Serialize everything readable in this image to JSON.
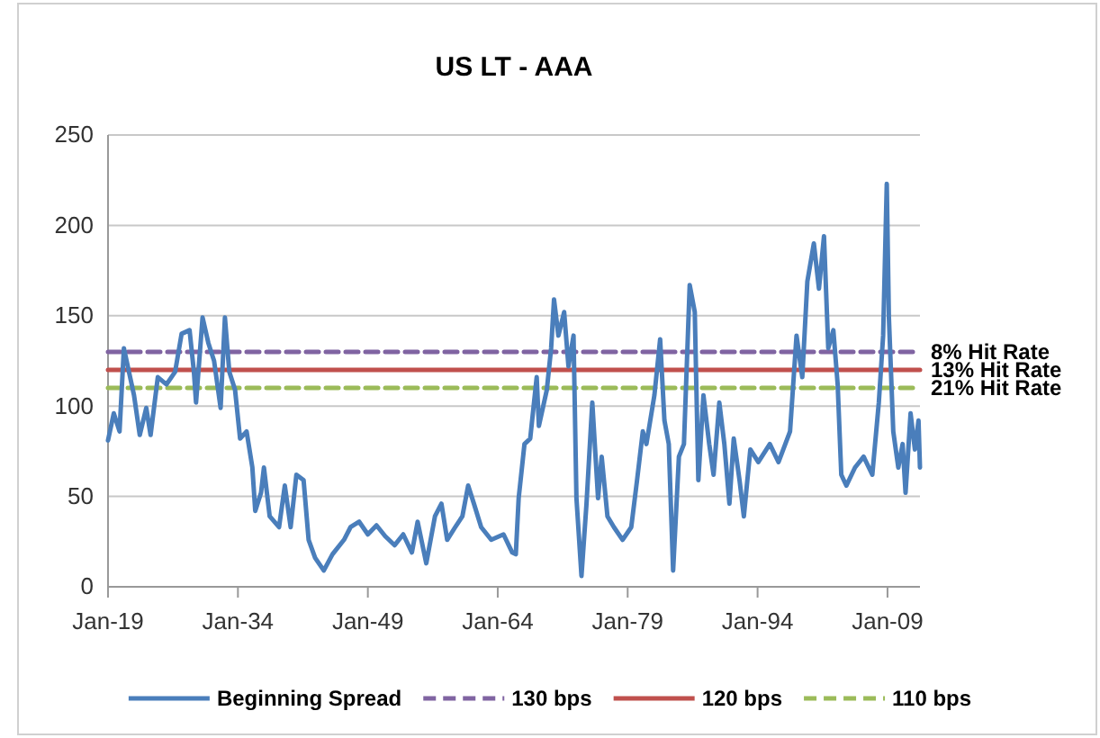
{
  "chart_data": {
    "type": "line",
    "title": "US LT - AAA",
    "xlim": [
      "1919-01",
      "2012-10"
    ],
    "xticks": [
      {
        "value": "1919-01",
        "label": "Jan-19"
      },
      {
        "value": "1934-01",
        "label": "Jan-34"
      },
      {
        "value": "1949-01",
        "label": "Jan-49"
      },
      {
        "value": "1964-01",
        "label": "Jan-64"
      },
      {
        "value": "1979-01",
        "label": "Jan-79"
      },
      {
        "value": "1994-01",
        "label": "Jan-94"
      },
      {
        "value": "2009-01",
        "label": "Jan-09"
      }
    ],
    "ylim": [
      0,
      250
    ],
    "yticks": [
      0,
      50,
      100,
      150,
      200,
      250
    ],
    "grid": "y",
    "legend": "bottom",
    "series": [
      {
        "name": "Beginning Spread",
        "color": "#4a7ebb",
        "line_style": "solid",
        "x": [
          "1919-01",
          "1919-09",
          "1920-05",
          "1920-11",
          "1921-06",
          "1922-01",
          "1922-09",
          "1923-06",
          "1923-12",
          "1924-10",
          "1925-10",
          "1926-10",
          "1927-07",
          "1928-06",
          "1928-12",
          "1929-03",
          "1929-12",
          "1930-08",
          "1931-04",
          "1932-01",
          "1932-07",
          "1933-01",
          "1933-09",
          "1934-04",
          "1935-01",
          "1935-09",
          "1936-01",
          "1936-09",
          "1937-01",
          "1937-09",
          "1938-10",
          "1939-06",
          "1940-02",
          "1940-10",
          "1941-08",
          "1942-03",
          "1942-12",
          "1943-12",
          "1944-12",
          "1946-04",
          "1947-01",
          "1948-01",
          "1949-01",
          "1950-01",
          "1951-01",
          "1952-02",
          "1953-02",
          "1954-02",
          "1954-10",
          "1955-10",
          "1956-10",
          "1957-07",
          "1958-03",
          "1959-02",
          "1959-12",
          "1960-08",
          "1961-04",
          "1962-02",
          "1963-04",
          "1964-09",
          "1965-09",
          "1966-02",
          "1966-06",
          "1967-02",
          "1967-10",
          "1968-07",
          "1968-10",
          "1969-09",
          "1970-03",
          "1970-07",
          "1971-01",
          "1971-09",
          "1972-03",
          "1972-10",
          "1973-02",
          "1973-09",
          "1974-04",
          "1974-12",
          "1975-08",
          "1976-01",
          "1976-09",
          "1977-06",
          "1978-06",
          "1979-06",
          "1980-02",
          "1980-10",
          "1981-03",
          "1982-02",
          "1982-10",
          "1983-04",
          "1983-10",
          "1984-04",
          "1984-12",
          "1985-07",
          "1986-03",
          "1986-10",
          "1987-03",
          "1987-10",
          "1988-06",
          "1988-12",
          "1989-08",
          "1990-03",
          "1990-10",
          "1991-04",
          "1991-12",
          "1992-06",
          "1993-03",
          "1994-02",
          "1995-06",
          "1996-06",
          "1997-10",
          "1998-07",
          "1999-03",
          "1999-10",
          "2000-07",
          "2001-02",
          "2001-09",
          "2002-03",
          "2002-10",
          "2003-04",
          "2003-09",
          "2004-04",
          "2005-04",
          "2006-04",
          "2007-04",
          "2008-01",
          "2008-07",
          "2008-12",
          "2009-03",
          "2009-09",
          "2010-04",
          "2010-10",
          "2011-02",
          "2011-09",
          "2012-03",
          "2012-08",
          "2012-10"
        ],
        "values": [
          81,
          96,
          86,
          132,
          119,
          106,
          84,
          99,
          84,
          116,
          112,
          119,
          140,
          142,
          119,
          102,
          149,
          135,
          125,
          99,
          149,
          119,
          109,
          82,
          86,
          66,
          42,
          52,
          66,
          39,
          33,
          56,
          33,
          62,
          59,
          26,
          16,
          9,
          18,
          26,
          33,
          36,
          29,
          34,
          28,
          23,
          29,
          19,
          36,
          13,
          39,
          46,
          26,
          33,
          39,
          56,
          46,
          33,
          26,
          29,
          19,
          18,
          49,
          79,
          82,
          116,
          89,
          109,
          132,
          159,
          139,
          152,
          122,
          139,
          49,
          6,
          46,
          102,
          49,
          72,
          39,
          33,
          26,
          33,
          59,
          86,
          79,
          106,
          137,
          92,
          79,
          9,
          72,
          79,
          167,
          152,
          59,
          106,
          79,
          62,
          102,
          79,
          46,
          82,
          59,
          39,
          76,
          69,
          79,
          69,
          86,
          139,
          116,
          169,
          190,
          165,
          194,
          132,
          142,
          112,
          62,
          56,
          66,
          72,
          62,
          102,
          139,
          223,
          149,
          86,
          66,
          79,
          52,
          96,
          76,
          92,
          66
        ]
      },
      {
        "name": "130 bps",
        "color": "#8064a2",
        "line_style": "dashed",
        "x": [
          "1919-01",
          "2012-10"
        ],
        "values": [
          130,
          130
        ]
      },
      {
        "name": "120 bps",
        "color": "#c0504d",
        "line_style": "solid",
        "x": [
          "1919-01",
          "2012-10"
        ],
        "values": [
          120,
          120
        ]
      },
      {
        "name": "110 bps",
        "color": "#9bbb59",
        "line_style": "dashed",
        "x": [
          "1919-01",
          "2012-10"
        ],
        "values": [
          110,
          110
        ]
      }
    ],
    "annotations": [
      {
        "text": "8% Hit Rate",
        "x": "2012-10",
        "y": 130
      },
      {
        "text": "13% Hit Rate",
        "x": "2012-10",
        "y": 120
      },
      {
        "text": "21% Hit Rate",
        "x": "2012-10",
        "y": 110
      }
    ]
  }
}
